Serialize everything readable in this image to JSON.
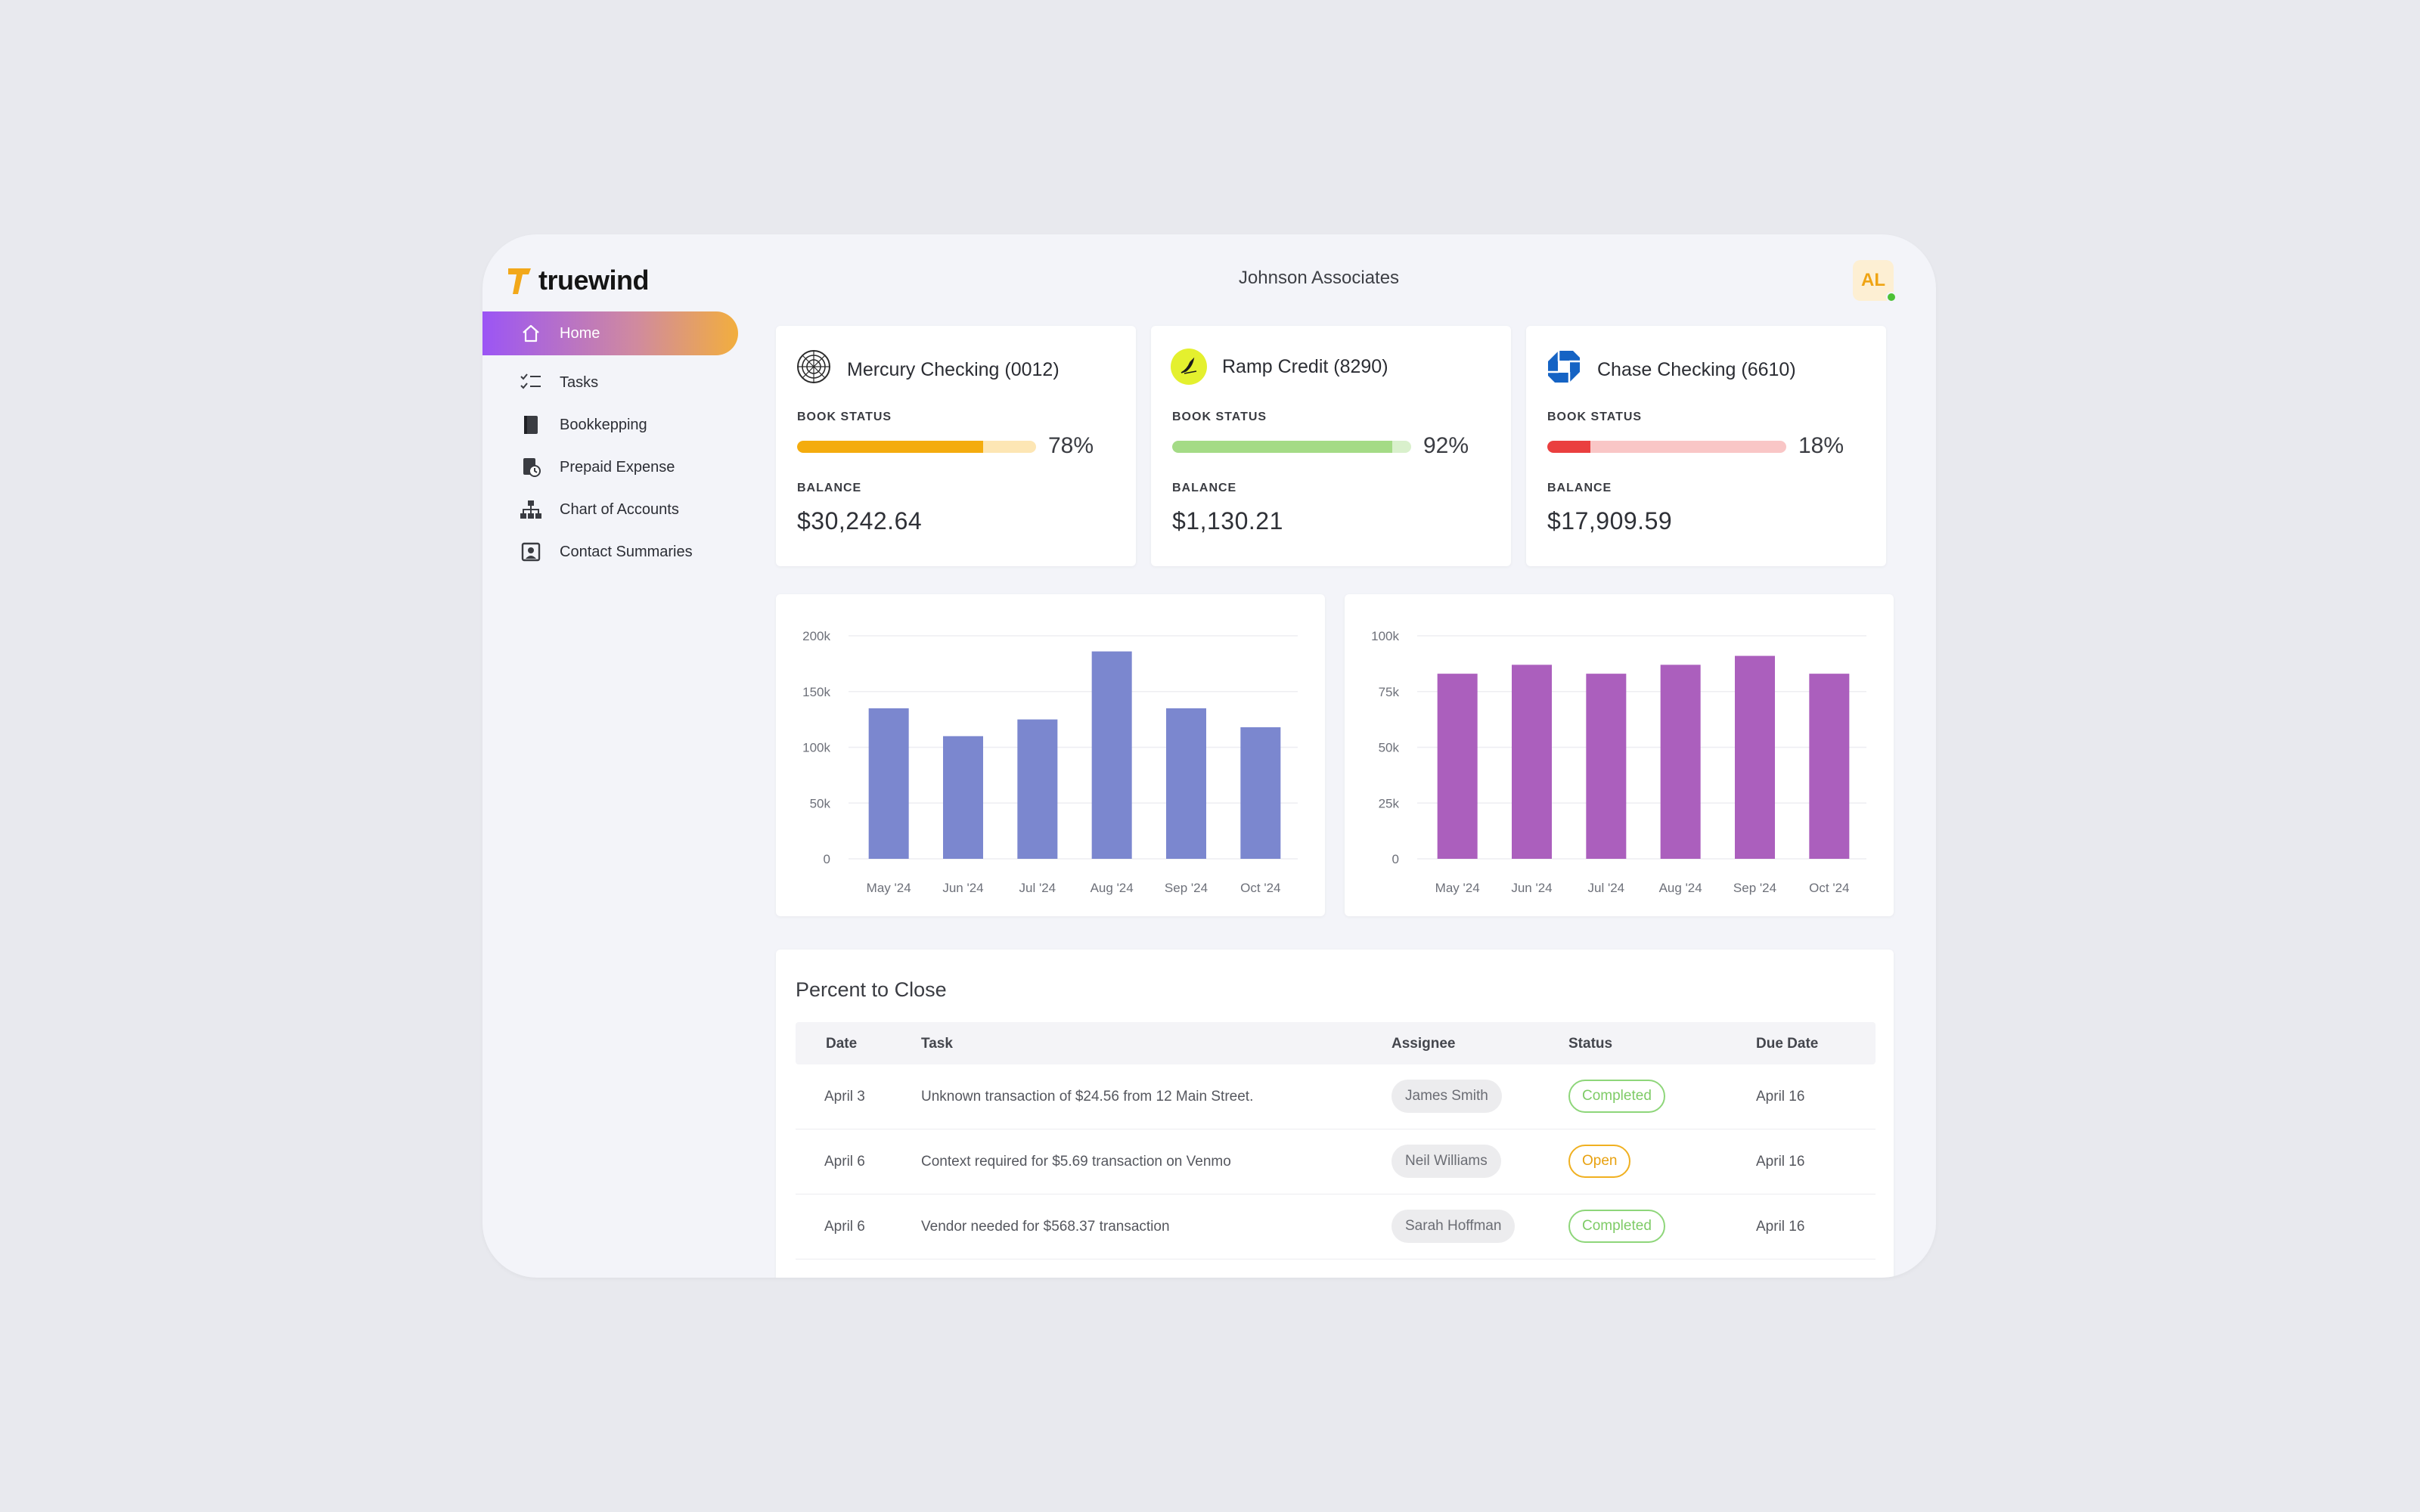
{
  "app": {
    "logo_text": "truewind",
    "company": "Johnson Associates",
    "avatar_initials": "AL"
  },
  "sidebar": {
    "items": [
      {
        "label": "Home",
        "icon": "home-icon",
        "active": true
      },
      {
        "label": "Tasks",
        "icon": "tasks-icon"
      },
      {
        "label": "Bookkepping",
        "icon": "book-icon"
      },
      {
        "label": "Prepaid Expense",
        "icon": "prepaid-expense-icon"
      },
      {
        "label": "Chart of Accounts",
        "icon": "hierarchy-icon"
      },
      {
        "label": "Contact Summaries",
        "icon": "contact-card-icon"
      }
    ]
  },
  "accounts": [
    {
      "name": "Mercury Checking (0012)",
      "book_label": "BOOK STATUS",
      "pct_label": "78%",
      "pct": 78,
      "balance_label": "BALANCE",
      "balance": "$30,242.64",
      "color": "#f4ac0e",
      "track": "#fde6b4",
      "icon": "mercury-logo-icon"
    },
    {
      "name": "Ramp Credit (8290)",
      "book_label": "BOOK STATUS",
      "pct_label": "92%",
      "pct": 92,
      "balance_label": "BALANCE",
      "balance": "$1,130.21",
      "color": "#a4db86",
      "track": "#d9f0cc",
      "icon": "ramp-logo-icon"
    },
    {
      "name": "Chase Checking (6610)",
      "book_label": "BOOK STATUS",
      "pct_label": "18%",
      "pct": 18,
      "balance_label": "BALANCE",
      "balance": "$17,909.59",
      "color": "#ea3f3f",
      "track": "#f9c6c6",
      "icon": "chase-logo-icon"
    }
  ],
  "chart_data": [
    {
      "type": "bar",
      "categories": [
        "May '24",
        "Jun '24",
        "Jul '24",
        "Aug '24",
        "Sep '24",
        "Oct '24"
      ],
      "values": [
        135000,
        110000,
        125000,
        186000,
        135000,
        118000
      ],
      "ylim": [
        0,
        200000
      ],
      "yticks": [
        0,
        50000,
        100000,
        150000,
        200000
      ],
      "ytick_labels": [
        "0",
        "50k",
        "100k",
        "150k",
        "200k"
      ],
      "color": "#7b87cf",
      "grid": true
    },
    {
      "type": "bar",
      "categories": [
        "May '24",
        "Jun '24",
        "Jul '24",
        "Aug '24",
        "Sep '24",
        "Oct '24"
      ],
      "values": [
        83000,
        87000,
        83000,
        87000,
        91000,
        83000
      ],
      "ylim": [
        0,
        100000
      ],
      "yticks": [
        0,
        25000,
        50000,
        75000,
        100000
      ],
      "ytick_labels": [
        "0",
        "25k",
        "50k",
        "75k",
        "100k"
      ],
      "color": "#ab5fbd",
      "grid": true
    }
  ],
  "close_table": {
    "title": "Percent to Close",
    "headers": {
      "date": "Date",
      "task": "Task",
      "assignee": "Assignee",
      "status": "Status",
      "due": "Due Date"
    },
    "rows": [
      {
        "date": "April 3",
        "task": "Unknown transaction of $24.56 from 12 Main Street.",
        "assignee": "James Smith",
        "status": "Completed",
        "due": "April 16"
      },
      {
        "date": "April 6",
        "task": "Context required for $5.69 transaction on Venmo",
        "assignee": "Neil Williams",
        "status": "Open",
        "due": "April 16"
      },
      {
        "date": "April 6",
        "task": "Vendor needed for $568.37 transaction",
        "assignee": "Sarah Hoffman",
        "status": "Completed",
        "due": "April 16"
      }
    ]
  }
}
